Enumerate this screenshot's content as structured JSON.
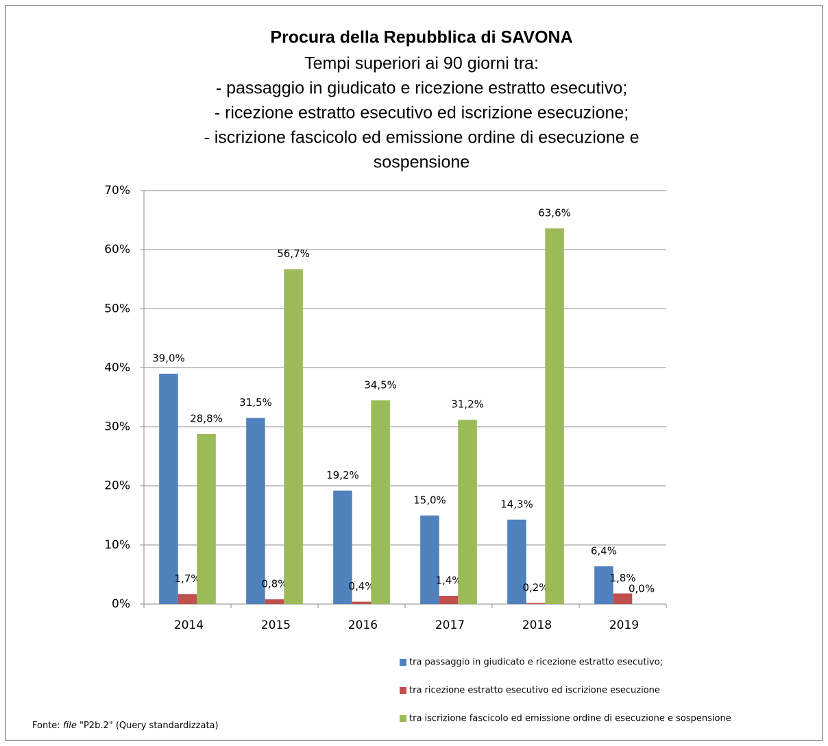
{
  "chart_data": {
    "type": "bar",
    "title": "Procura della Repubblica di SAVONA",
    "subtitle": [
      "Tempi superiori ai 90 giorni tra:",
      "- passaggio in giudicato e ricezione estratto esecutivo;",
      "- ricezione estratto esecutivo ed iscrizione esecuzione;",
      "- iscrizione fascicolo ed emissione ordine di esecuzione e",
      "sospensione"
    ],
    "categories": [
      "2014",
      "2015",
      "2016",
      "2017",
      "2018",
      "2019"
    ],
    "series": [
      {
        "name": "tra passaggio in giudicato e ricezione estratto esecutivo;",
        "color": "#4f81bd",
        "values": [
          39.0,
          31.5,
          19.2,
          15.0,
          14.3,
          6.4
        ],
        "value_labels": [
          "39,0%",
          "31,5%",
          "19,2%",
          "15,0%",
          "14,3%",
          "6,4%"
        ]
      },
      {
        "name": "tra ricezione estratto esecutivo ed iscrizione esecuzione",
        "color": "#c0504d",
        "values": [
          1.7,
          0.8,
          0.4,
          1.4,
          0.2,
          1.8
        ],
        "value_labels": [
          "1,7%",
          "0,8%",
          "0,4%",
          "1,4%",
          "0,2%",
          "1,8%"
        ]
      },
      {
        "name": "tra iscrizione fascicolo ed emissione ordine di esecuzione e sospensione",
        "color": "#9bbb59",
        "values": [
          28.8,
          56.7,
          34.5,
          31.2,
          63.6,
          0.0
        ],
        "value_labels": [
          "28,8%",
          "56,7%",
          "34,5%",
          "31,2%",
          "63,6%",
          "0,0%"
        ]
      }
    ],
    "ylim": [
      0,
      70
    ],
    "yticks": [
      {
        "value": 0,
        "label": "0%"
      },
      {
        "value": 10,
        "label": "10%"
      },
      {
        "value": 20,
        "label": "20%"
      },
      {
        "value": 30,
        "label": "30%"
      },
      {
        "value": 40,
        "label": "40%"
      },
      {
        "value": 50,
        "label": "50%"
      },
      {
        "value": 60,
        "label": "60%"
      },
      {
        "value": 70,
        "label": "70%"
      }
    ],
    "grid": true,
    "legend": "bottom-right",
    "source": {
      "prefix": "Fonte:",
      "italic": "file",
      "rest": "\"P2b.2\" (Query standardizzata)"
    }
  }
}
